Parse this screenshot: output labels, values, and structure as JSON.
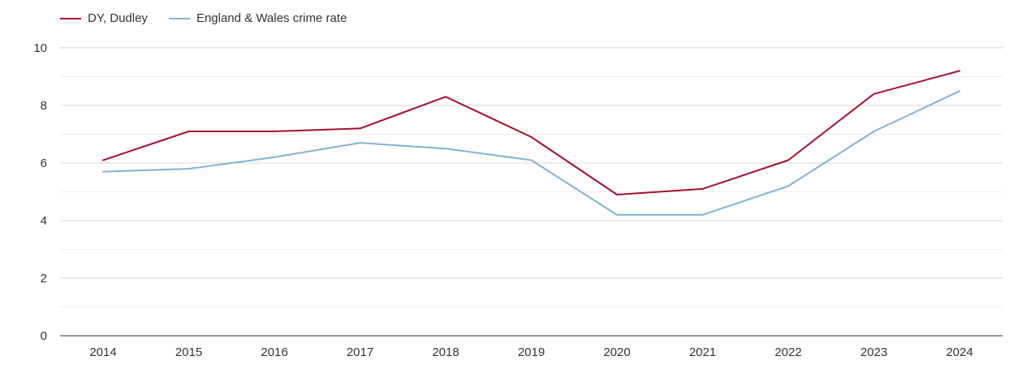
{
  "chart_data": {
    "type": "line",
    "title": "",
    "xlabel": "",
    "ylabel": "",
    "categories": [
      "2014",
      "2015",
      "2016",
      "2017",
      "2018",
      "2019",
      "2020",
      "2021",
      "2022",
      "2023",
      "2024"
    ],
    "ylim": [
      0,
      10
    ],
    "y_ticks": [
      0,
      2,
      4,
      6,
      8,
      10
    ],
    "y_tick_labels": [
      "0",
      "2",
      "4",
      "6",
      "8",
      "10"
    ],
    "grid": true,
    "legend_position": "top-left",
    "series": [
      {
        "name": "DY, Dudley",
        "color": "#a50f33",
        "values": [
          6.1,
          7.1,
          7.1,
          7.2,
          8.3,
          6.9,
          4.9,
          5.1,
          6.1,
          8.4,
          9.2
        ]
      },
      {
        "name": "England & Wales crime rate",
        "color": "#7fb3d3",
        "values": [
          5.7,
          5.8,
          6.2,
          6.7,
          6.5,
          6.1,
          4.2,
          4.2,
          5.2,
          7.1,
          8.5
        ]
      }
    ]
  }
}
